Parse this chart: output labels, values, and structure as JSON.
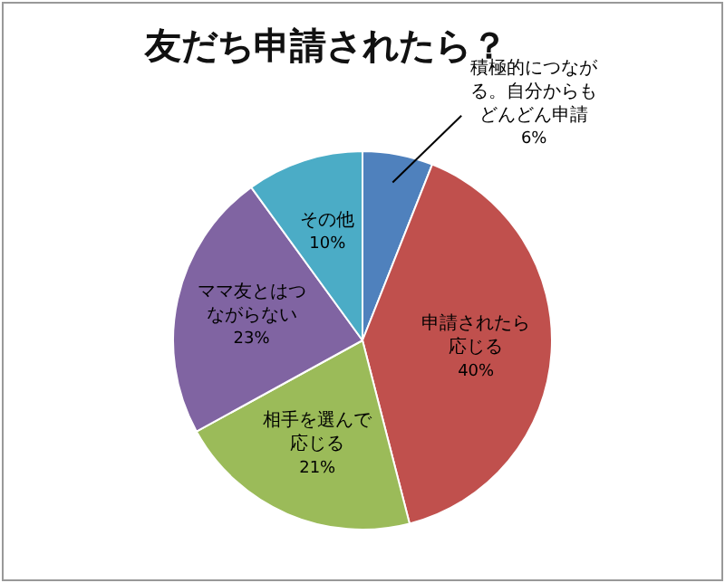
{
  "chart_data": {
    "type": "pie",
    "title": "友だち申請されたら？",
    "categories": [
      "積極的につながる。自分からもどんどん申請",
      "申請されたら応じる",
      "相手を選んで応じる",
      "ママ友とはつながらない",
      "その他"
    ],
    "values": [
      6,
      40,
      21,
      23,
      10
    ],
    "colors": [
      "#4f81bd",
      "#c0504d",
      "#9bbb59",
      "#8064a2",
      "#4bacc6"
    ],
    "value_labels": [
      "6%",
      "40%",
      "21%",
      "23%",
      "10%"
    ],
    "legend": false
  }
}
